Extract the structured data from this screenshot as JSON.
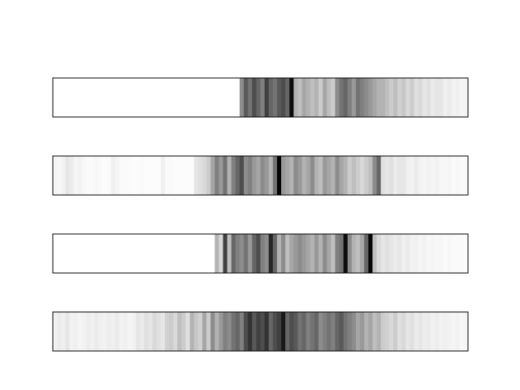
{
  "chart_data": {
    "type": "heatmap",
    "colormap": "binary",
    "value_range": [
      0,
      1
    ],
    "x_range": [
      0,
      100
    ],
    "bins": 100,
    "show_ticks": false,
    "grid": false,
    "panels": [
      {
        "values": [
          0,
          0,
          0,
          0,
          0,
          0,
          0,
          0,
          0,
          0,
          0,
          0,
          0,
          0,
          0,
          0,
          0,
          0,
          0,
          0,
          0,
          0,
          0,
          0,
          0,
          0,
          0,
          0,
          0,
          0,
          0,
          0,
          0,
          0,
          0,
          0,
          0,
          0,
          0,
          0,
          0,
          0,
          0,
          0,
          0,
          0.45,
          0.65,
          0.55,
          0.7,
          0.6,
          0.5,
          0.75,
          0.6,
          0.55,
          0.65,
          0.7,
          0.6,
          0.95,
          0.3,
          0.25,
          0.35,
          0.3,
          0.25,
          0.3,
          0.2,
          0.35,
          0.25,
          0.2,
          0.45,
          0.55,
          0.6,
          0.5,
          0.4,
          0.55,
          0.5,
          0.45,
          0.4,
          0.35,
          0.3,
          0.3,
          0.25,
          0.2,
          0.25,
          0.18,
          0.22,
          0.15,
          0.2,
          0.12,
          0.15,
          0.1,
          0.12,
          0.08,
          0.1,
          0.1,
          0.06,
          0.08,
          0.05,
          0.06,
          0.04,
          0.04
        ]
      },
      {
        "values": [
          0.04,
          0.03,
          0.05,
          0.1,
          0.08,
          0.04,
          0.05,
          0.03,
          0.02,
          0.02,
          0.03,
          0.02,
          0.01,
          0.02,
          0.06,
          0.04,
          0.02,
          0.02,
          0.02,
          0.01,
          0.01,
          0.02,
          0.01,
          0.01,
          0.01,
          0.01,
          0.06,
          0.02,
          0.02,
          0.01,
          0.01,
          0.01,
          0.01,
          0.01,
          0.1,
          0.12,
          0.15,
          0.2,
          0.35,
          0.5,
          0.4,
          0.55,
          0.3,
          0.5,
          0.6,
          0.7,
          0.45,
          0.5,
          0.4,
          0.35,
          0.45,
          0.4,
          0.3,
          0.55,
          0.98,
          0.4,
          0.35,
          0.3,
          0.45,
          0.4,
          0.3,
          0.35,
          0.45,
          0.3,
          0.25,
          0.4,
          0.35,
          0.3,
          0.45,
          0.35,
          0.3,
          0.2,
          0.25,
          0.2,
          0.15,
          0.2,
          0.25,
          0.45,
          0.6,
          0.12,
          0.1,
          0.12,
          0.08,
          0.1,
          0.1,
          0.06,
          0.05,
          0.08,
          0.05,
          0.04,
          0.05,
          0.04,
          0.05,
          0.03,
          0.03,
          0.04,
          0.02,
          0.03,
          0.02,
          0.02
        ]
      },
      {
        "values": [
          0,
          0,
          0,
          0,
          0,
          0,
          0,
          0,
          0,
          0,
          0,
          0,
          0,
          0,
          0,
          0,
          0,
          0,
          0,
          0,
          0,
          0,
          0,
          0,
          0,
          0,
          0,
          0,
          0,
          0,
          0,
          0,
          0,
          0,
          0,
          0,
          0,
          0,
          0,
          0.3,
          0.15,
          0.75,
          0.25,
          0.6,
          0.5,
          0.45,
          0.55,
          0.4,
          0.6,
          0.7,
          0.5,
          0.45,
          0.85,
          0.6,
          0.3,
          0.45,
          0.25,
          0.35,
          0.4,
          0.45,
          0.4,
          0.35,
          0.3,
          0.4,
          0.3,
          0.45,
          0.35,
          0.25,
          0.5,
          0.55,
          0.95,
          0.45,
          0.3,
          0.25,
          0.35,
          0.6,
          0.98,
          0.25,
          0.15,
          0.1,
          0.12,
          0.1,
          0.08,
          0.1,
          0.06,
          0.08,
          0.05,
          0.06,
          0.04,
          0.05,
          0.03,
          0.04,
          0.03,
          0.03,
          0.02,
          0.03,
          0.02,
          0.02,
          0.02,
          0.01
        ]
      },
      {
        "values": [
          0.05,
          0.08,
          0.06,
          0.1,
          0.05,
          0.06,
          0.04,
          0.05,
          0.07,
          0.06,
          0.08,
          0.06,
          0.05,
          0.07,
          0.06,
          0.08,
          0.05,
          0.06,
          0.04,
          0.05,
          0.1,
          0.08,
          0.12,
          0.1,
          0.15,
          0.12,
          0.1,
          0.18,
          0.2,
          0.15,
          0.25,
          0.2,
          0.12,
          0.3,
          0.22,
          0.18,
          0.35,
          0.2,
          0.45,
          0.3,
          0.4,
          0.5,
          0.45,
          0.55,
          0.6,
          0.5,
          0.7,
          0.8,
          0.65,
          0.75,
          0.7,
          0.8,
          0.6,
          0.7,
          0.75,
          0.9,
          0.6,
          0.7,
          0.65,
          0.55,
          0.6,
          0.5,
          0.55,
          0.6,
          0.45,
          0.5,
          0.55,
          0.5,
          0.6,
          0.65,
          0.55,
          0.5,
          0.45,
          0.35,
          0.4,
          0.3,
          0.35,
          0.25,
          0.3,
          0.2,
          0.18,
          0.15,
          0.2,
          0.12,
          0.15,
          0.1,
          0.12,
          0.08,
          0.1,
          0.07,
          0.08,
          0.06,
          0.07,
          0.05,
          0.06,
          0.05,
          0.04,
          0.05,
          0.03,
          0.04
        ]
      }
    ]
  }
}
